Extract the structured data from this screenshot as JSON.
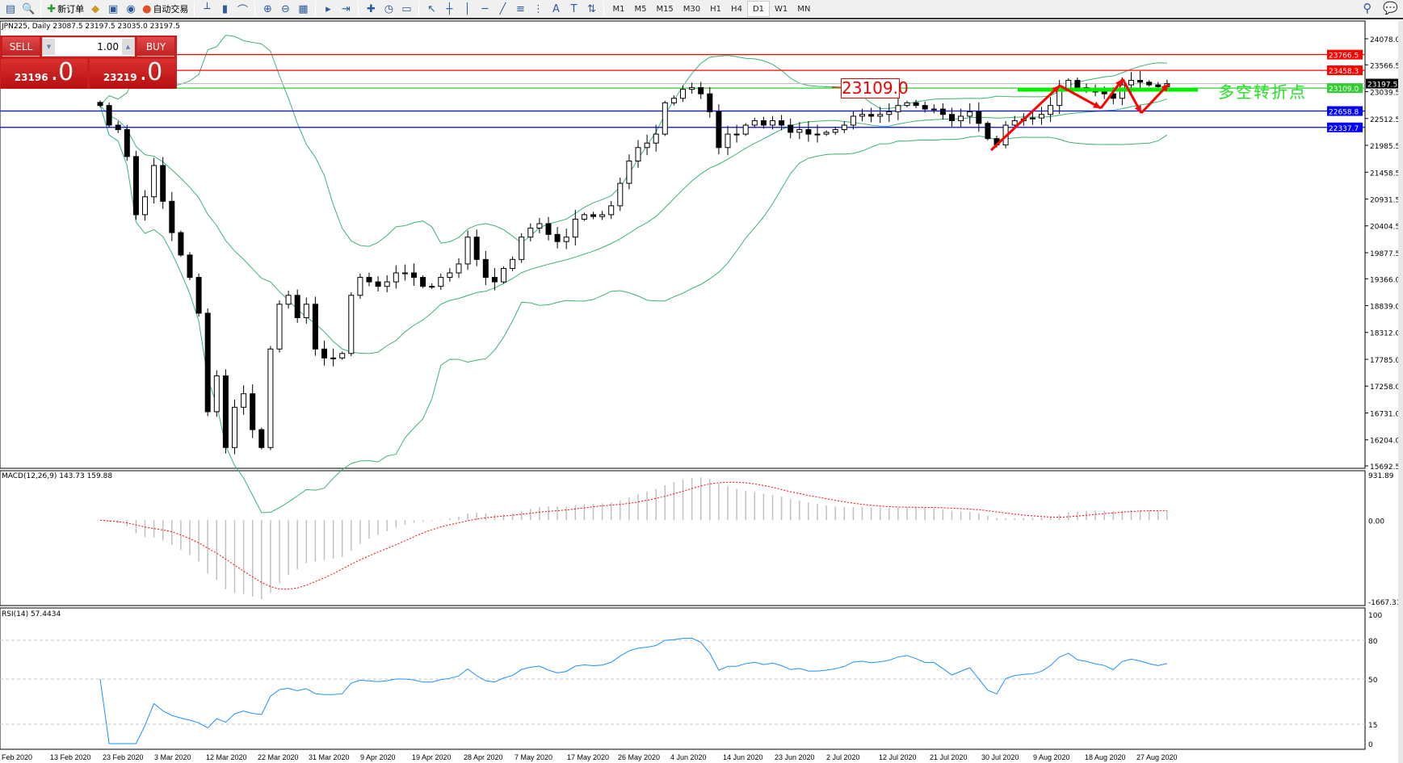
{
  "toolbar": {
    "new_order_label": "新订单",
    "auto_trading_label": "自动交易",
    "timeframes": [
      "M1",
      "M5",
      "M15",
      "M30",
      "H1",
      "H4",
      "D1",
      "W1",
      "MN"
    ],
    "active_timeframe": "D1",
    "icons": [
      "new-chart-icon",
      "zoom-chart-icon",
      "new-order-icon",
      "gold-icon",
      "history-icon",
      "signal-icon",
      "auto-trading-icon",
      "bar-chart-icon",
      "candlestick-icon",
      "line-chart-icon",
      "zoom-in-icon",
      "zoom-out-icon",
      "tile-windows-icon",
      "auto-scroll-icon",
      "chart-shift-icon",
      "indicators-icon",
      "periods-icon",
      "templates-icon",
      "cursor-icon",
      "crosshair-icon",
      "vertical-line-icon",
      "horizontal-line-icon",
      "trendline-icon",
      "fibonacci-icon",
      "channel-icon",
      "text-icon",
      "text-label-icon",
      "arrows-icon"
    ],
    "search_icon": "search-icon",
    "chat_icon": "chat-icon"
  },
  "chart": {
    "title": "JPN225, Daily  23087.5 23197.5 23035.0 23197.5",
    "symbol": "JPN225",
    "timeframe": "Daily"
  },
  "trade_panel": {
    "sell_label": "SELL",
    "buy_label": "BUY",
    "volume": "1.00",
    "sell_price_main": "23196",
    "sell_price_big": ".0",
    "buy_price_main": "23219",
    "buy_price_big": ".0",
    "color": "#c81e1e"
  },
  "annotations": {
    "price_box": "23109.0",
    "text": "多空转折点",
    "text_color": "#22e022",
    "arrow_color": "#ff0000"
  },
  "chart_data": {
    "type": "candlestick",
    "price_axis": [
      "24078.0",
      "23566.5",
      "23039.5",
      "22512.5",
      "21985.5",
      "21458.5",
      "20931.5",
      "20404.5",
      "19877.5",
      "19366.0",
      "18839.0",
      "18312.0",
      "17785.0",
      "17258.0",
      "16731.0",
      "16204.0",
      "15692.5"
    ],
    "price_range": [
      15692.5,
      24078.0
    ],
    "date_axis": [
      "Feb 2020",
      "13 Feb 2020",
      "23 Feb 2020",
      "3 Mar 2020",
      "12 Mar 2020",
      "22 Mar 2020",
      "31 Mar 2020",
      "9 Apr 2020",
      "19 Apr 2020",
      "28 Apr 2020",
      "7 May 2020",
      "17 May 2020",
      "26 May 2020",
      "4 Jun 2020",
      "14 Jun 2020",
      "23 Jun 2020",
      "2 Jul 2020",
      "12 Jul 2020",
      "21 Jul 2020",
      "30 Jul 2020",
      "9 Aug 2020",
      "18 Aug 2020",
      "27 Aug 2020"
    ],
    "closes": [
      22768,
      22382,
      22294,
      21766,
      20624,
      20975,
      21590,
      20887,
      20272,
      19832,
      19393,
      18690,
      16756,
      17459,
      16053,
      16844,
      17108,
      16404,
      16053,
      17987,
      18866,
      19041,
      18602,
      18866,
      17987,
      17811,
      17811,
      17899,
      19041,
      19393,
      19305,
      19217,
      19305,
      19481,
      19481,
      19393,
      19217,
      19217,
      19393,
      19481,
      19657,
      20184,
      19745,
      19393,
      19305,
      19569,
      19745,
      20184,
      20360,
      20448,
      20237,
      20096,
      20184,
      20536,
      20624,
      20588,
      20624,
      20799,
      21239,
      21678,
      21942,
      22030,
      22206,
      22821,
      22909,
      23085,
      23120,
      22997,
      22645,
      21942,
      22206,
      22206,
      22382,
      22469,
      22382,
      22469,
      22382,
      22241,
      22294,
      22206,
      22206,
      22241,
      22294,
      22382,
      22557,
      22592,
      22557,
      22592,
      22645,
      22768,
      22821,
      22768,
      22698,
      22698,
      22592,
      22469,
      22557,
      22645,
      22417,
      22118,
      21995,
      22382,
      22469,
      22505,
      22522,
      22592,
      22768,
      23085,
      23261,
      23120,
      23085,
      23032,
      22997,
      22909,
      23173,
      23261,
      23225,
      23173,
      23137,
      23197.5
    ],
    "horizontal_lines": [
      {
        "price": 23766.5,
        "label": "23766.5",
        "color": "#ff0000"
      },
      {
        "price": 23458.3,
        "label": "23458.3",
        "color": "#ff0000"
      },
      {
        "price": 23197.5,
        "label": "23197.5",
        "color": "#c0c0c0",
        "label_bg": "#000000"
      },
      {
        "price": 23109.0,
        "label": "23109.0",
        "color": "#33cc33"
      },
      {
        "price": 22658.8,
        "label": "22658.8",
        "color": "#0000ff"
      },
      {
        "price": 22337.7,
        "label": "22337.7",
        "color": "#0000ff"
      }
    ],
    "bollinger_color": "#3cb371",
    "macd": {
      "label": "MACD(12,26,9) 143.73 159.88",
      "axis": [
        "931.89",
        "0.00",
        "-1667.31"
      ],
      "range": [
        -1667.31,
        931.89
      ],
      "signal_color": "#ff0000",
      "hist_color": "#c0c0c0"
    },
    "rsi": {
      "label": "RSI(14) 57.4434",
      "axis": [
        "100",
        "80",
        "50",
        "15",
        "0"
      ],
      "levels": [
        80,
        50,
        15
      ],
      "color": "#1e90ff"
    }
  }
}
